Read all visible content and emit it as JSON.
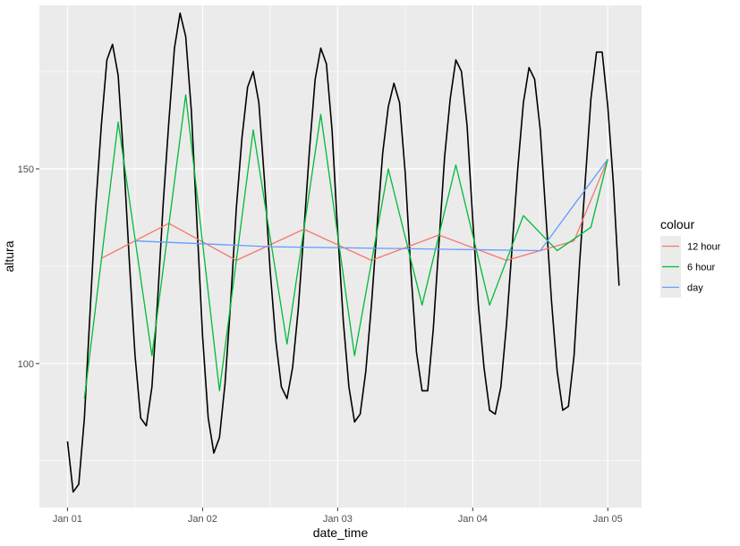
{
  "chart_data": {
    "type": "line",
    "xlabel": "date_time",
    "ylabel": "altura",
    "x_ticks": [
      {
        "label": "Jan 01",
        "hour": 0
      },
      {
        "label": "Jan 02",
        "hour": 24
      },
      {
        "label": "Jan 03",
        "hour": 48
      },
      {
        "label": "Jan 04",
        "hour": 72
      },
      {
        "label": "Jan 05",
        "hour": 96
      }
    ],
    "y_ticks": [
      100,
      150
    ],
    "xlim_hours": [
      -5,
      102
    ],
    "ylim": [
      63,
      192
    ],
    "grid": true,
    "legend": {
      "title": "colour",
      "position": "right",
      "entries": [
        {
          "label": "12 hour",
          "color": "#F8766D"
        },
        {
          "label": "6 hour",
          "color": "#00BA38"
        },
        {
          "label": "day",
          "color": "#619CFF"
        }
      ]
    },
    "series": [
      {
        "color": "#000000",
        "hour_step": 1,
        "values": [
          80,
          67,
          69,
          86,
          113,
          140,
          161,
          178,
          182,
          174,
          152,
          126,
          102,
          86,
          84,
          94,
          116,
          141,
          162,
          181,
          190,
          184,
          165,
          136,
          107,
          86,
          77,
          81,
          95,
          116,
          140,
          158,
          171,
          175,
          167,
          147,
          124,
          106,
          94,
          91,
          99,
          114,
          134,
          155,
          173,
          181,
          177,
          160,
          134,
          111,
          94,
          85,
          87,
          98,
          115,
          135,
          154,
          166,
          172,
          167,
          149,
          124,
          103,
          93,
          93,
          109,
          131,
          153,
          168,
          178,
          175,
          161,
          137,
          115,
          99,
          88,
          87,
          94,
          110,
          130,
          150,
          167,
          176,
          173,
          160,
          138,
          116,
          98,
          88,
          89,
          102,
          126,
          147,
          168,
          180,
          180,
          166,
          146,
          120
        ]
      },
      {
        "name": "12 hour",
        "color": "#F8766D",
        "x_hours": [
          6,
          18,
          30,
          42,
          54,
          66,
          78,
          90,
          96
        ],
        "values": [
          127,
          136,
          126.5,
          134.5,
          126.5,
          133,
          126.5,
          131.5,
          152.5
        ]
      },
      {
        "name": "6 hour",
        "color": "#00BA38",
        "x_hours": [
          3,
          9,
          15,
          21,
          27,
          33,
          39,
          45,
          51,
          57,
          63,
          69,
          75,
          81,
          87,
          93,
          96
        ],
        "values": [
          91,
          162,
          102,
          169,
          93,
          160,
          105,
          164,
          102,
          150,
          115,
          151,
          115,
          138,
          129,
          135,
          152.5
        ]
      },
      {
        "name": "day",
        "color": "#619CFF",
        "x_hours": [
          12,
          36,
          60,
          84,
          96
        ],
        "values": [
          131.5,
          130,
          129.5,
          129,
          152.5
        ]
      }
    ]
  }
}
